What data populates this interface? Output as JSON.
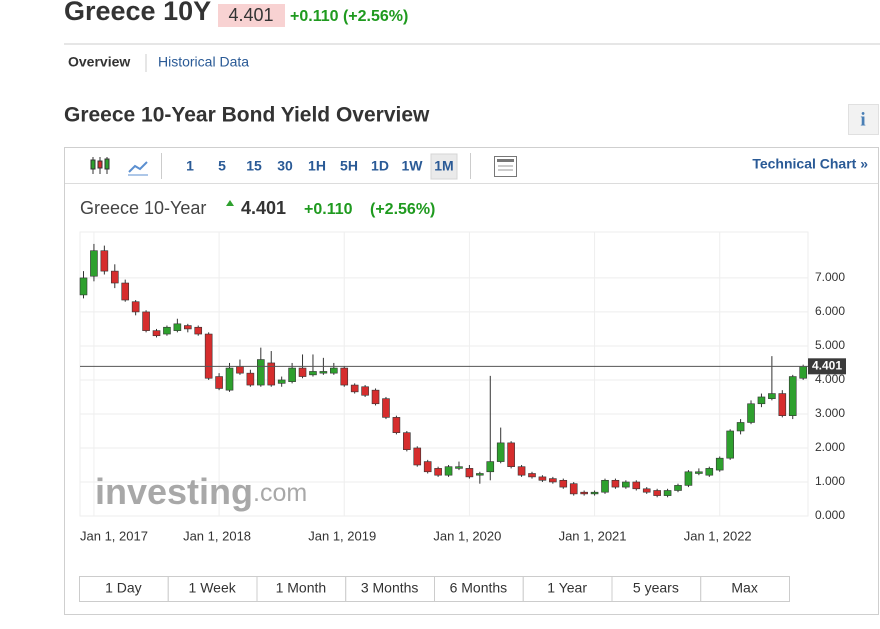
{
  "header": {
    "title": "Greece 10Y",
    "price": "4.401",
    "change": "+0.110 (+2.56%)"
  },
  "tabs": [
    "Overview",
    "Historical Data"
  ],
  "section_title": "Greece 10-Year Bond Yield Overview",
  "info_icon": "i",
  "toolbar": {
    "intervals": [
      "1",
      "5",
      "15",
      "30",
      "1H",
      "5H",
      "1D",
      "1W",
      "1M"
    ],
    "selected": "1M",
    "technical_chart": "Technical Chart »"
  },
  "ranges": [
    "1 Day",
    "1 Week",
    "1 Month",
    "3 Months",
    "6 Months",
    "1 Year",
    "5 years",
    "Max"
  ],
  "chart_data": {
    "type": "candlestick",
    "legend": {
      "name": "Greece 10-Year",
      "price": "4.401",
      "change": "+0.110",
      "change_pct": "(+2.56%)"
    },
    "watermark": [
      "investing",
      ".com"
    ],
    "up_color": "#2ea02e",
    "down_color": "#d62d2d",
    "x": [
      "2016-12-01",
      "2017-01-01",
      "2017-02-01",
      "2017-03-01",
      "2017-04-01",
      "2017-05-01",
      "2017-06-01",
      "2017-07-01",
      "2017-08-01",
      "2017-09-01",
      "2017-10-01",
      "2017-11-01",
      "2017-12-01",
      "2018-01-01",
      "2018-02-01",
      "2018-03-01",
      "2018-04-01",
      "2018-05-01",
      "2018-06-01",
      "2018-07-01",
      "2018-08-01",
      "2018-09-01",
      "2018-10-01",
      "2018-11-01",
      "2018-12-01",
      "2019-01-01",
      "2019-02-01",
      "2019-03-01",
      "2019-04-01",
      "2019-05-01",
      "2019-06-01",
      "2019-07-01",
      "2019-08-01",
      "2019-09-01",
      "2019-10-01",
      "2019-11-01",
      "2019-12-01",
      "2020-01-01",
      "2020-02-01",
      "2020-03-01",
      "2020-04-01",
      "2020-05-01",
      "2020-06-01",
      "2020-07-01",
      "2020-08-01",
      "2020-09-01",
      "2020-10-01",
      "2020-11-01",
      "2020-12-01",
      "2021-01-01",
      "2021-02-01",
      "2021-03-01",
      "2021-04-01",
      "2021-05-01",
      "2021-06-01",
      "2021-07-01",
      "2021-08-01",
      "2021-09-01",
      "2021-10-01",
      "2021-11-01",
      "2021-12-01",
      "2022-01-01",
      "2022-02-01",
      "2022-03-01",
      "2022-04-01",
      "2022-05-01",
      "2022-06-01",
      "2022-07-01",
      "2022-08-01",
      "2022-09-01"
    ],
    "open": [
      6.5,
      7.05,
      7.8,
      7.2,
      6.85,
      6.3,
      6.0,
      5.45,
      5.35,
      5.45,
      5.6,
      5.55,
      5.35,
      4.1,
      3.7,
      4.4,
      4.2,
      3.85,
      4.5,
      3.9,
      3.95,
      4.35,
      4.15,
      4.2,
      4.2,
      4.35,
      3.85,
      3.8,
      3.7,
      3.45,
      2.9,
      2.45,
      2.0,
      1.6,
      1.4,
      1.2,
      1.4,
      1.4,
      1.2,
      1.3,
      1.6,
      2.15,
      1.45,
      1.25,
      1.15,
      1.1,
      1.05,
      0.95,
      0.7,
      0.65,
      0.7,
      1.05,
      0.85,
      1.0,
      0.8,
      0.75,
      0.6,
      0.75,
      0.9,
      1.25,
      1.2,
      1.35,
      1.7,
      2.5,
      2.75,
      3.3,
      3.45,
      3.6,
      2.95,
      4.05
    ],
    "high": [
      7.2,
      8.0,
      7.95,
      7.4,
      6.95,
      6.35,
      6.05,
      5.5,
      5.6,
      5.8,
      5.65,
      5.6,
      5.4,
      4.2,
      4.5,
      4.6,
      4.3,
      4.95,
      4.85,
      4.1,
      4.5,
      4.75,
      4.75,
      4.65,
      4.5,
      4.4,
      3.9,
      3.85,
      3.75,
      3.5,
      2.95,
      2.5,
      2.05,
      1.65,
      1.45,
      1.5,
      1.6,
      1.5,
      1.3,
      4.12,
      2.6,
      2.2,
      1.5,
      1.3,
      1.2,
      1.15,
      1.1,
      1.0,
      0.75,
      0.75,
      1.1,
      1.1,
      1.05,
      1.05,
      0.85,
      0.8,
      0.8,
      0.95,
      1.35,
      1.4,
      1.45,
      1.75,
      2.55,
      2.85,
      3.4,
      3.6,
      4.7,
      3.7,
      4.15,
      4.45
    ],
    "low": [
      6.4,
      6.9,
      7.1,
      6.7,
      6.3,
      5.9,
      5.4,
      5.25,
      5.3,
      5.4,
      5.4,
      5.3,
      4.0,
      3.7,
      3.65,
      4.15,
      3.8,
      3.8,
      3.8,
      3.8,
      3.9,
      4.05,
      4.1,
      4.15,
      4.15,
      3.8,
      3.6,
      3.5,
      3.25,
      2.85,
      2.4,
      1.9,
      1.45,
      1.25,
      1.15,
      1.15,
      1.35,
      1.1,
      0.95,
      1.05,
      1.55,
      1.4,
      1.15,
      1.1,
      1.0,
      0.95,
      0.8,
      0.6,
      0.6,
      0.6,
      0.65,
      0.8,
      0.8,
      0.75,
      0.65,
      0.55,
      0.55,
      0.7,
      0.85,
      1.2,
      1.15,
      1.3,
      1.65,
      2.4,
      2.7,
      3.2,
      3.4,
      2.9,
      2.85,
      4.0
    ],
    "close": [
      7.0,
      7.8,
      7.2,
      6.85,
      6.35,
      6.0,
      5.45,
      5.3,
      5.55,
      5.65,
      5.5,
      5.35,
      4.05,
      3.75,
      4.35,
      4.2,
      3.85,
      4.6,
      3.85,
      4.0,
      4.35,
      4.1,
      4.25,
      4.25,
      4.35,
      3.85,
      3.65,
      3.55,
      3.3,
      2.9,
      2.45,
      1.95,
      1.5,
      1.3,
      1.2,
      1.45,
      1.45,
      1.15,
      1.25,
      1.6,
      2.15,
      1.45,
      1.2,
      1.15,
      1.05,
      1.0,
      0.85,
      0.65,
      0.65,
      0.7,
      1.05,
      0.85,
      1.0,
      0.8,
      0.7,
      0.6,
      0.75,
      0.9,
      1.3,
      1.3,
      1.4,
      1.7,
      2.5,
      2.75,
      3.3,
      3.5,
      3.6,
      2.95,
      4.1,
      4.401
    ],
    "last": {
      "value": 4.401,
      "label": "4.401"
    },
    "ylim": [
      0,
      8.35
    ],
    "yticks": [
      {
        "value": 0,
        "label": "0.000"
      },
      {
        "value": 1,
        "label": "1.000"
      },
      {
        "value": 2,
        "label": "2.000"
      },
      {
        "value": 3,
        "label": "3.000"
      },
      {
        "value": 4,
        "label": "4.000"
      },
      {
        "value": 5,
        "label": "5.000"
      },
      {
        "value": 6,
        "label": "6.000"
      },
      {
        "value": 7,
        "label": "7.000"
      }
    ],
    "xticks": [
      {
        "value": "2017-01-01",
        "label": "Jan 1, 2017"
      },
      {
        "value": "2018-01-01",
        "label": "Jan 1, 2018"
      },
      {
        "value": "2019-01-01",
        "label": "Jan 1, 2019"
      },
      {
        "value": "2020-01-01",
        "label": "Jan 1, 2020"
      },
      {
        "value": "2021-01-01",
        "label": "Jan 1, 2021"
      },
      {
        "value": "2022-01-01",
        "label": "Jan 1, 2022"
      }
    ],
    "grid": true
  }
}
